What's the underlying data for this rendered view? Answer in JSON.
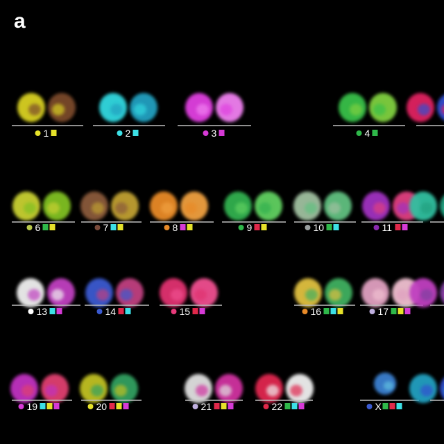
{
  "panel_letter": "a",
  "colors": {
    "yellow": "#e6e22a",
    "cyan": "#3de0e6",
    "magenta": "#d63ad6",
    "green": "#2fb84a",
    "red": "#e0284a",
    "brown": "#7a4a3a",
    "orange": "#e88a28",
    "olive": "#b8c84a",
    "gray": "#9aa0a0",
    "purple": "#8a2ab0",
    "white": "#ffffff",
    "blue": "#3a5ad0",
    "pink": "#e83a7a",
    "lilac": "#c0b0e0"
  },
  "chromosomes": [
    {
      "label": "1",
      "dot": "yellow",
      "squares": [
        "yellow"
      ],
      "body": [
        "#d8d020",
        "#7a4a2a"
      ]
    },
    {
      "label": "2",
      "dot": "cyan",
      "squares": [
        "cyan"
      ],
      "body": [
        "#30d8e0",
        "#20a0c0"
      ]
    },
    {
      "label": "3",
      "dot": "magenta",
      "squares": [
        "magenta"
      ],
      "body": [
        "#e040e0",
        "#f080f0"
      ]
    },
    {
      "label": "4",
      "dot": "green",
      "squares": [
        "green"
      ],
      "body": [
        "#38c048",
        "#80d040"
      ]
    },
    {
      "label": "",
      "dot": "",
      "squares": [],
      "body": [
        "#e02060",
        "#3050d0"
      ]
    },
    {
      "label": "6",
      "dot": "olive",
      "squares": [
        "green",
        "yellow"
      ],
      "body": [
        "#c8d030",
        "#80c020"
      ]
    },
    {
      "label": "7",
      "dot": "brown",
      "squares": [
        "cyan",
        "yellow"
      ],
      "body": [
        "#8a5a3a",
        "#c0a030"
      ]
    },
    {
      "label": "8",
      "dot": "orange",
      "squares": [
        "magenta",
        "yellow"
      ],
      "body": [
        "#e88a28",
        "#f0a040"
      ]
    },
    {
      "label": "9",
      "dot": "green",
      "squares": [
        "red",
        "yellow"
      ],
      "body": [
        "#30b050",
        "#60d060"
      ]
    },
    {
      "label": "10",
      "dot": "gray",
      "squares": [
        "green",
        "cyan"
      ],
      "body": [
        "#a0c0a0",
        "#60c080"
      ]
    },
    {
      "label": "11",
      "dot": "purple",
      "squares": [
        "red",
        "magenta"
      ],
      "body": [
        "#a030c0",
        "#e04080"
      ]
    },
    {
      "label": "",
      "dot": "",
      "squares": [],
      "body": [
        "#30c0a0",
        "#20a080"
      ]
    },
    {
      "label": "13",
      "dot": "white",
      "squares": [
        "cyan",
        "magenta"
      ],
      "body": [
        "#f0f0f0",
        "#c040c0"
      ]
    },
    {
      "label": "14",
      "dot": "blue",
      "squares": [
        "red",
        "cyan"
      ],
      "body": [
        "#3a5ad0",
        "#c04080"
      ]
    },
    {
      "label": "15",
      "dot": "pink",
      "squares": [
        "red",
        "magenta"
      ],
      "body": [
        "#e03070",
        "#f05090"
      ]
    },
    {
      "label": "16",
      "dot": "orange",
      "squares": [
        "green",
        "cyan",
        "yellow"
      ],
      "body": [
        "#e0c040",
        "#40b060"
      ]
    },
    {
      "label": "17",
      "dot": "lilac",
      "squares": [
        "green",
        "yellow",
        "magenta"
      ],
      "body": [
        "#e0a0c0",
        "#f0c0d0"
      ]
    },
    {
      "label": "",
      "dot": "",
      "squares": [],
      "body": [
        "#c040c0",
        "#8040a0"
      ]
    },
    {
      "label": "19",
      "dot": "magenta",
      "squares": [
        "cyan",
        "yellow",
        "magenta"
      ],
      "body": [
        "#c030c0",
        "#e04070"
      ]
    },
    {
      "label": "20",
      "dot": "yellow",
      "squares": [
        "red",
        "yellow",
        "magenta"
      ],
      "body": [
        "#c0c020",
        "#30a060"
      ]
    },
    {
      "label": "21",
      "dot": "lilac",
      "squares": [
        "red",
        "yellow",
        "magenta"
      ],
      "body": [
        "#e0e0e0",
        "#d030a0"
      ]
    },
    {
      "label": "22",
      "dot": "red",
      "squares": [
        "green",
        "cyan",
        "magenta"
      ],
      "body": [
        "#e02850",
        "#f0f0f0"
      ]
    },
    {
      "label": "X",
      "dot": "blue",
      "squares": [
        "green",
        "red",
        "cyan"
      ],
      "body": [
        "#3a80d0",
        "#60c0e0"
      ]
    },
    {
      "label": "",
      "dot": "",
      "squares": [],
      "body": [
        "#20a0c0",
        "#3050d0"
      ]
    }
  ]
}
